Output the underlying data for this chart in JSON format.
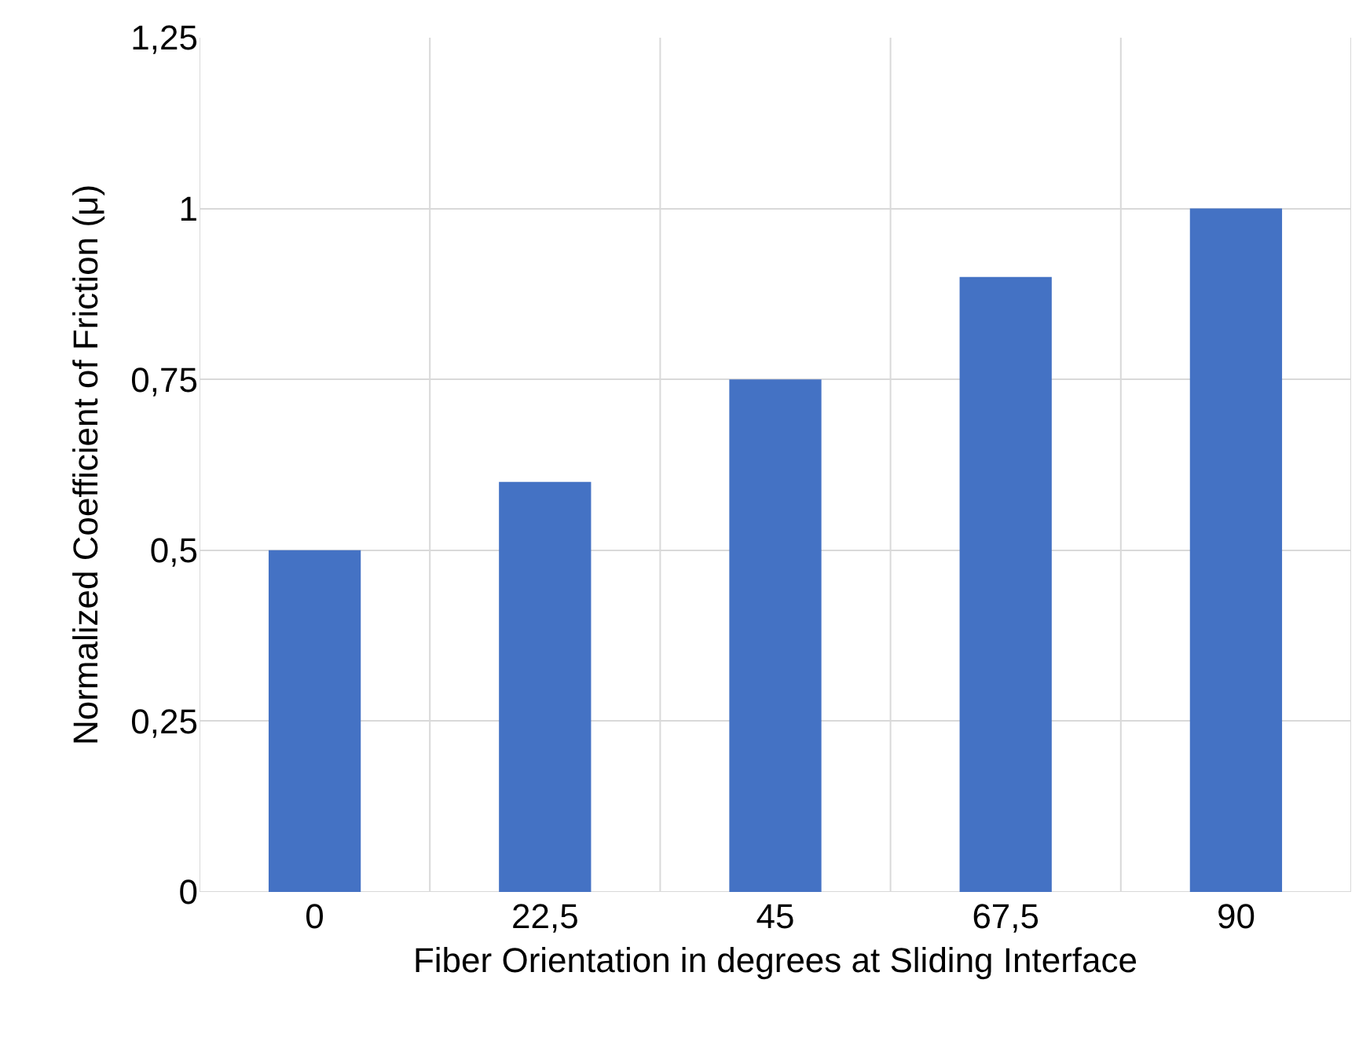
{
  "chart_data": {
    "type": "bar",
    "xlabel": "Fiber Orientation in degrees at Sliding Interface",
    "ylabel": "Normalized Coefficient of Friction (μ)",
    "categories": [
      "0",
      "22,5",
      "45",
      "67,5",
      "90"
    ],
    "values": [
      0.5,
      0.6,
      0.75,
      0.9,
      1.0
    ],
    "color": "#4472c4",
    "ylim": [
      0,
      1.25
    ],
    "yticks": [
      0,
      {
        "value": 0.25,
        "label": "0,25"
      },
      {
        "value": 0.5,
        "label": "0,5"
      },
      {
        "value": 0.75,
        "label": "0,75"
      },
      1,
      {
        "value": 1.25,
        "label": "1,25"
      }
    ],
    "grid": true
  }
}
